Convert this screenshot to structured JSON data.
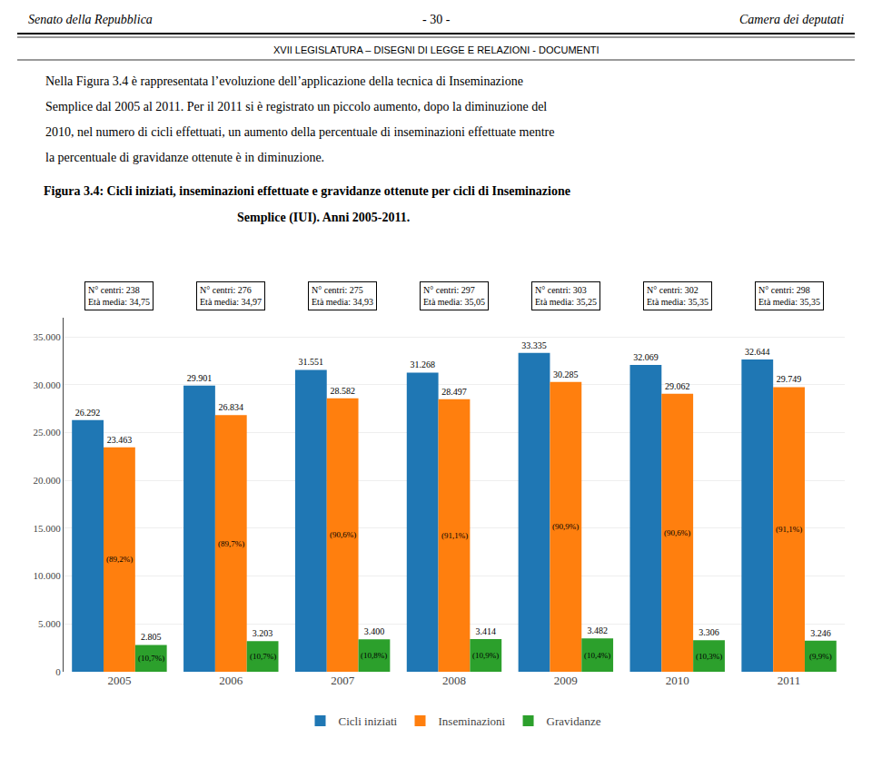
{
  "chart_data": {
    "type": "bar",
    "header": [
      "Senato della Repubblica",
      "- 30 -",
      "Camera dei deputati"
    ],
    "subheader": "XVII LEGISLATURA – DISEGNI DI LEGGE E RELAZIONI - DOCUMENTI",
    "body": [
      "Nella Figura 3.4 è rappresentata l’evoluzione dell’applicazione della tecnica di Inseminazione",
      "Semplice dal 2005 al 2011. Per il 2011 si è registrato un piccolo aumento, dopo la diminuzione del",
      "2010, nel numero di cicli effettuati, un aumento della percentuale di inseminazioni effettuate mentre",
      "la percentuale di gravidanze ottenute è in diminuzione."
    ],
    "title": "Figura 3.4: Cicli iniziati, inseminazioni effettuate e gravidanze ottenute per cicli di Inseminazione",
    "subtitle": "Semplice (IUI). Anni 2005-2011.",
    "categories": [
      "2005",
      "2006",
      "2007",
      "2008",
      "2009",
      "2010",
      "2011"
    ],
    "series": [
      {
        "name": "Cicli iniziati",
        "values": [
          26292,
          29901,
          31551,
          31268,
          33335,
          32069,
          32644
        ],
        "value_labels": [
          "26.292",
          "29.901",
          "31.551",
          "31.268",
          "33.335",
          "32.069",
          "32.644"
        ]
      },
      {
        "name": "Inseminazioni",
        "values": [
          23463,
          26834,
          28582,
          28497,
          30285,
          29062,
          29749
        ],
        "value_labels": [
          "23.463",
          "26.834",
          "28.582",
          "28.497",
          "30.285",
          "29.062",
          "29.749"
        ],
        "percent_labels": [
          "(89,2%)",
          "(89,7%)",
          "(90,6%)",
          "(91,1%)",
          "(90,9%)",
          "(90,6%)",
          "(91,1%)"
        ]
      },
      {
        "name": "Gravidanze",
        "values": [
          2805,
          3203,
          3400,
          3414,
          3482,
          3306,
          3246
        ],
        "value_labels": [
          "2.805",
          "3.203",
          "3.400",
          "3.414",
          "3.482",
          "3.306",
          "3.246"
        ],
        "percent_labels": [
          "(10,7%)",
          "(10,7%)",
          "(10,8%)",
          "(10,9%)",
          "(10,4%)",
          "(10,3%)",
          "(9,9%)"
        ]
      }
    ],
    "category_notes": [
      [
        "N° centri: 238",
        "Età media: 34,75"
      ],
      [
        "N° centri: 276",
        "Età media: 34,97"
      ],
      [
        "N° centri: 275",
        "Età media: 34,93"
      ],
      [
        "N° centri: 297",
        "Età media: 35,05"
      ],
      [
        "N° centri: 303",
        "Età media: 35,25"
      ],
      [
        "N° centri: 302",
        "Età media: 35,35"
      ],
      [
        "N° centri: 298",
        "Età media: 35,35"
      ]
    ],
    "ylim": [
      0,
      37000
    ],
    "yticks": [
      0,
      {
        "value": 5000,
        "label": "5.000"
      },
      {
        "value": 10000,
        "label": "10.000"
      },
      {
        "value": 15000,
        "label": "15.000"
      },
      {
        "value": 20000,
        "label": "20.000"
      },
      {
        "value": 25000,
        "label": "25.000"
      },
      {
        "value": 30000,
        "label": "30.000"
      },
      {
        "value": 35000,
        "label": "35.000"
      }
    ],
    "grid": true,
    "legend": "bottom",
    "data_labels": true
  }
}
